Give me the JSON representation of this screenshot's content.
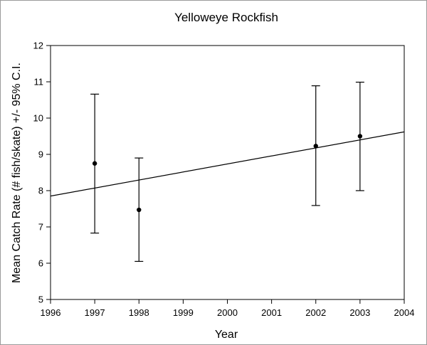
{
  "chart_data": {
    "type": "scatter",
    "title": "Yelloweye Rockfish",
    "xlabel": "Year",
    "ylabel": "Mean Catch Rate (# fish/skate) +/- 95% C.I.",
    "xlim": [
      1996,
      2004
    ],
    "ylim": [
      5,
      12
    ],
    "xticks": [
      1996,
      1997,
      1998,
      1999,
      2000,
      2001,
      2002,
      2003,
      2004
    ],
    "yticks": [
      5,
      6,
      7,
      8,
      9,
      10,
      11,
      12
    ],
    "grid": false,
    "points": [
      {
        "x": 1997,
        "y": 8.75,
        "lower": 6.83,
        "upper": 10.66
      },
      {
        "x": 1998,
        "y": 7.47,
        "lower": 6.05,
        "upper": 8.9
      },
      {
        "x": 2002,
        "y": 9.23,
        "lower": 7.59,
        "upper": 10.89
      },
      {
        "x": 2003,
        "y": 9.5,
        "lower": 8.0,
        "upper": 10.99
      }
    ],
    "trendline": {
      "x": [
        1996,
        2004
      ],
      "y": [
        7.85,
        9.62
      ]
    }
  }
}
